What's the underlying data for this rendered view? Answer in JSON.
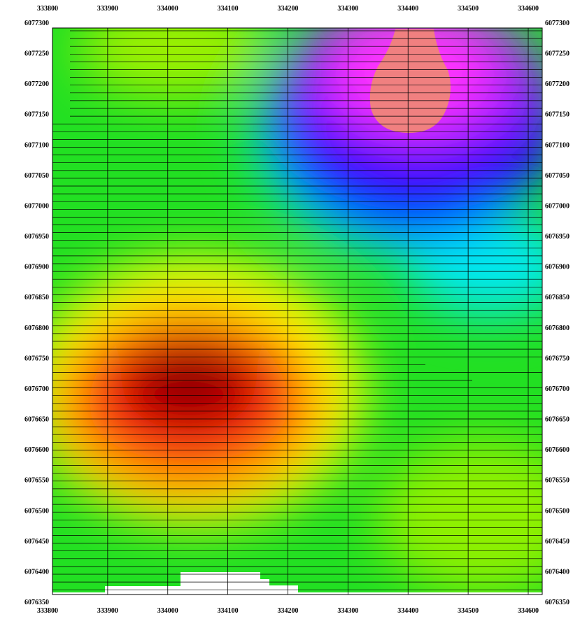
{
  "map": {
    "x_ticks": [
      "333800",
      "333900",
      "334000",
      "334100",
      "334200",
      "334300",
      "334400",
      "334500",
      "334600"
    ],
    "y_ticks": [
      "6077300",
      "6077250",
      "6077200",
      "6077150",
      "6077100",
      "6077050",
      "6077000",
      "6076950",
      "6076900",
      "6076850",
      "6076800",
      "6076750",
      "6076700",
      "6076650",
      "6076600",
      "6076550",
      "6076500",
      "6076450",
      "6076400",
      "6076350"
    ],
    "x_range": [
      333800,
      334600
    ],
    "y_range": [
      6076350,
      6077300
    ]
  },
  "colors": {
    "green": "#00e040",
    "yellow": "#ffff00",
    "orange": "#ff8c00",
    "red": "#ff0000",
    "dark_red": "#8b0000",
    "cyan": "#00ffff",
    "blue": "#0000ff",
    "magenta": "#ff00ff",
    "salmon": "#f08080",
    "violet": "#a000ff"
  }
}
